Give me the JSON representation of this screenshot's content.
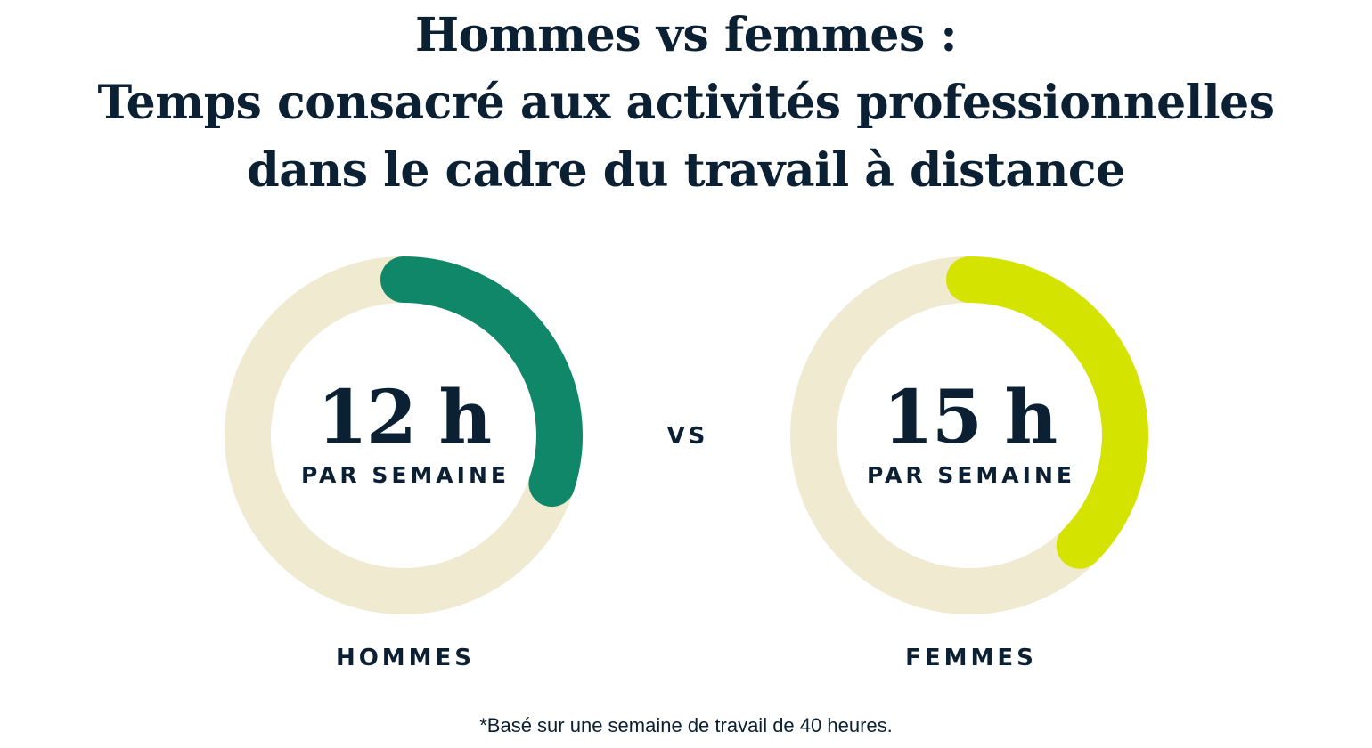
{
  "title_lines": [
    "Hommes vs femmes :",
    "Temps consacré aux activités professionnelles",
    "dans le cadre du travail à distance"
  ],
  "vs_label": "VS",
  "footnote": "*Basé sur une semaine de travail de 40 heures.",
  "colors": {
    "track": "#f0ead0",
    "text": "#0b2033"
  },
  "chart_data": {
    "type": "gauge",
    "max": 40,
    "gauges": [
      {
        "category": "HOMMES",
        "value": 12,
        "value_label": "12 h",
        "unit_label": "PAR SEMAINE",
        "color": "#11876a"
      },
      {
        "category": "FEMMES",
        "value": 15,
        "value_label": "15 h",
        "unit_label": "PAR SEMAINE",
        "color": "#d4e300"
      }
    ]
  }
}
